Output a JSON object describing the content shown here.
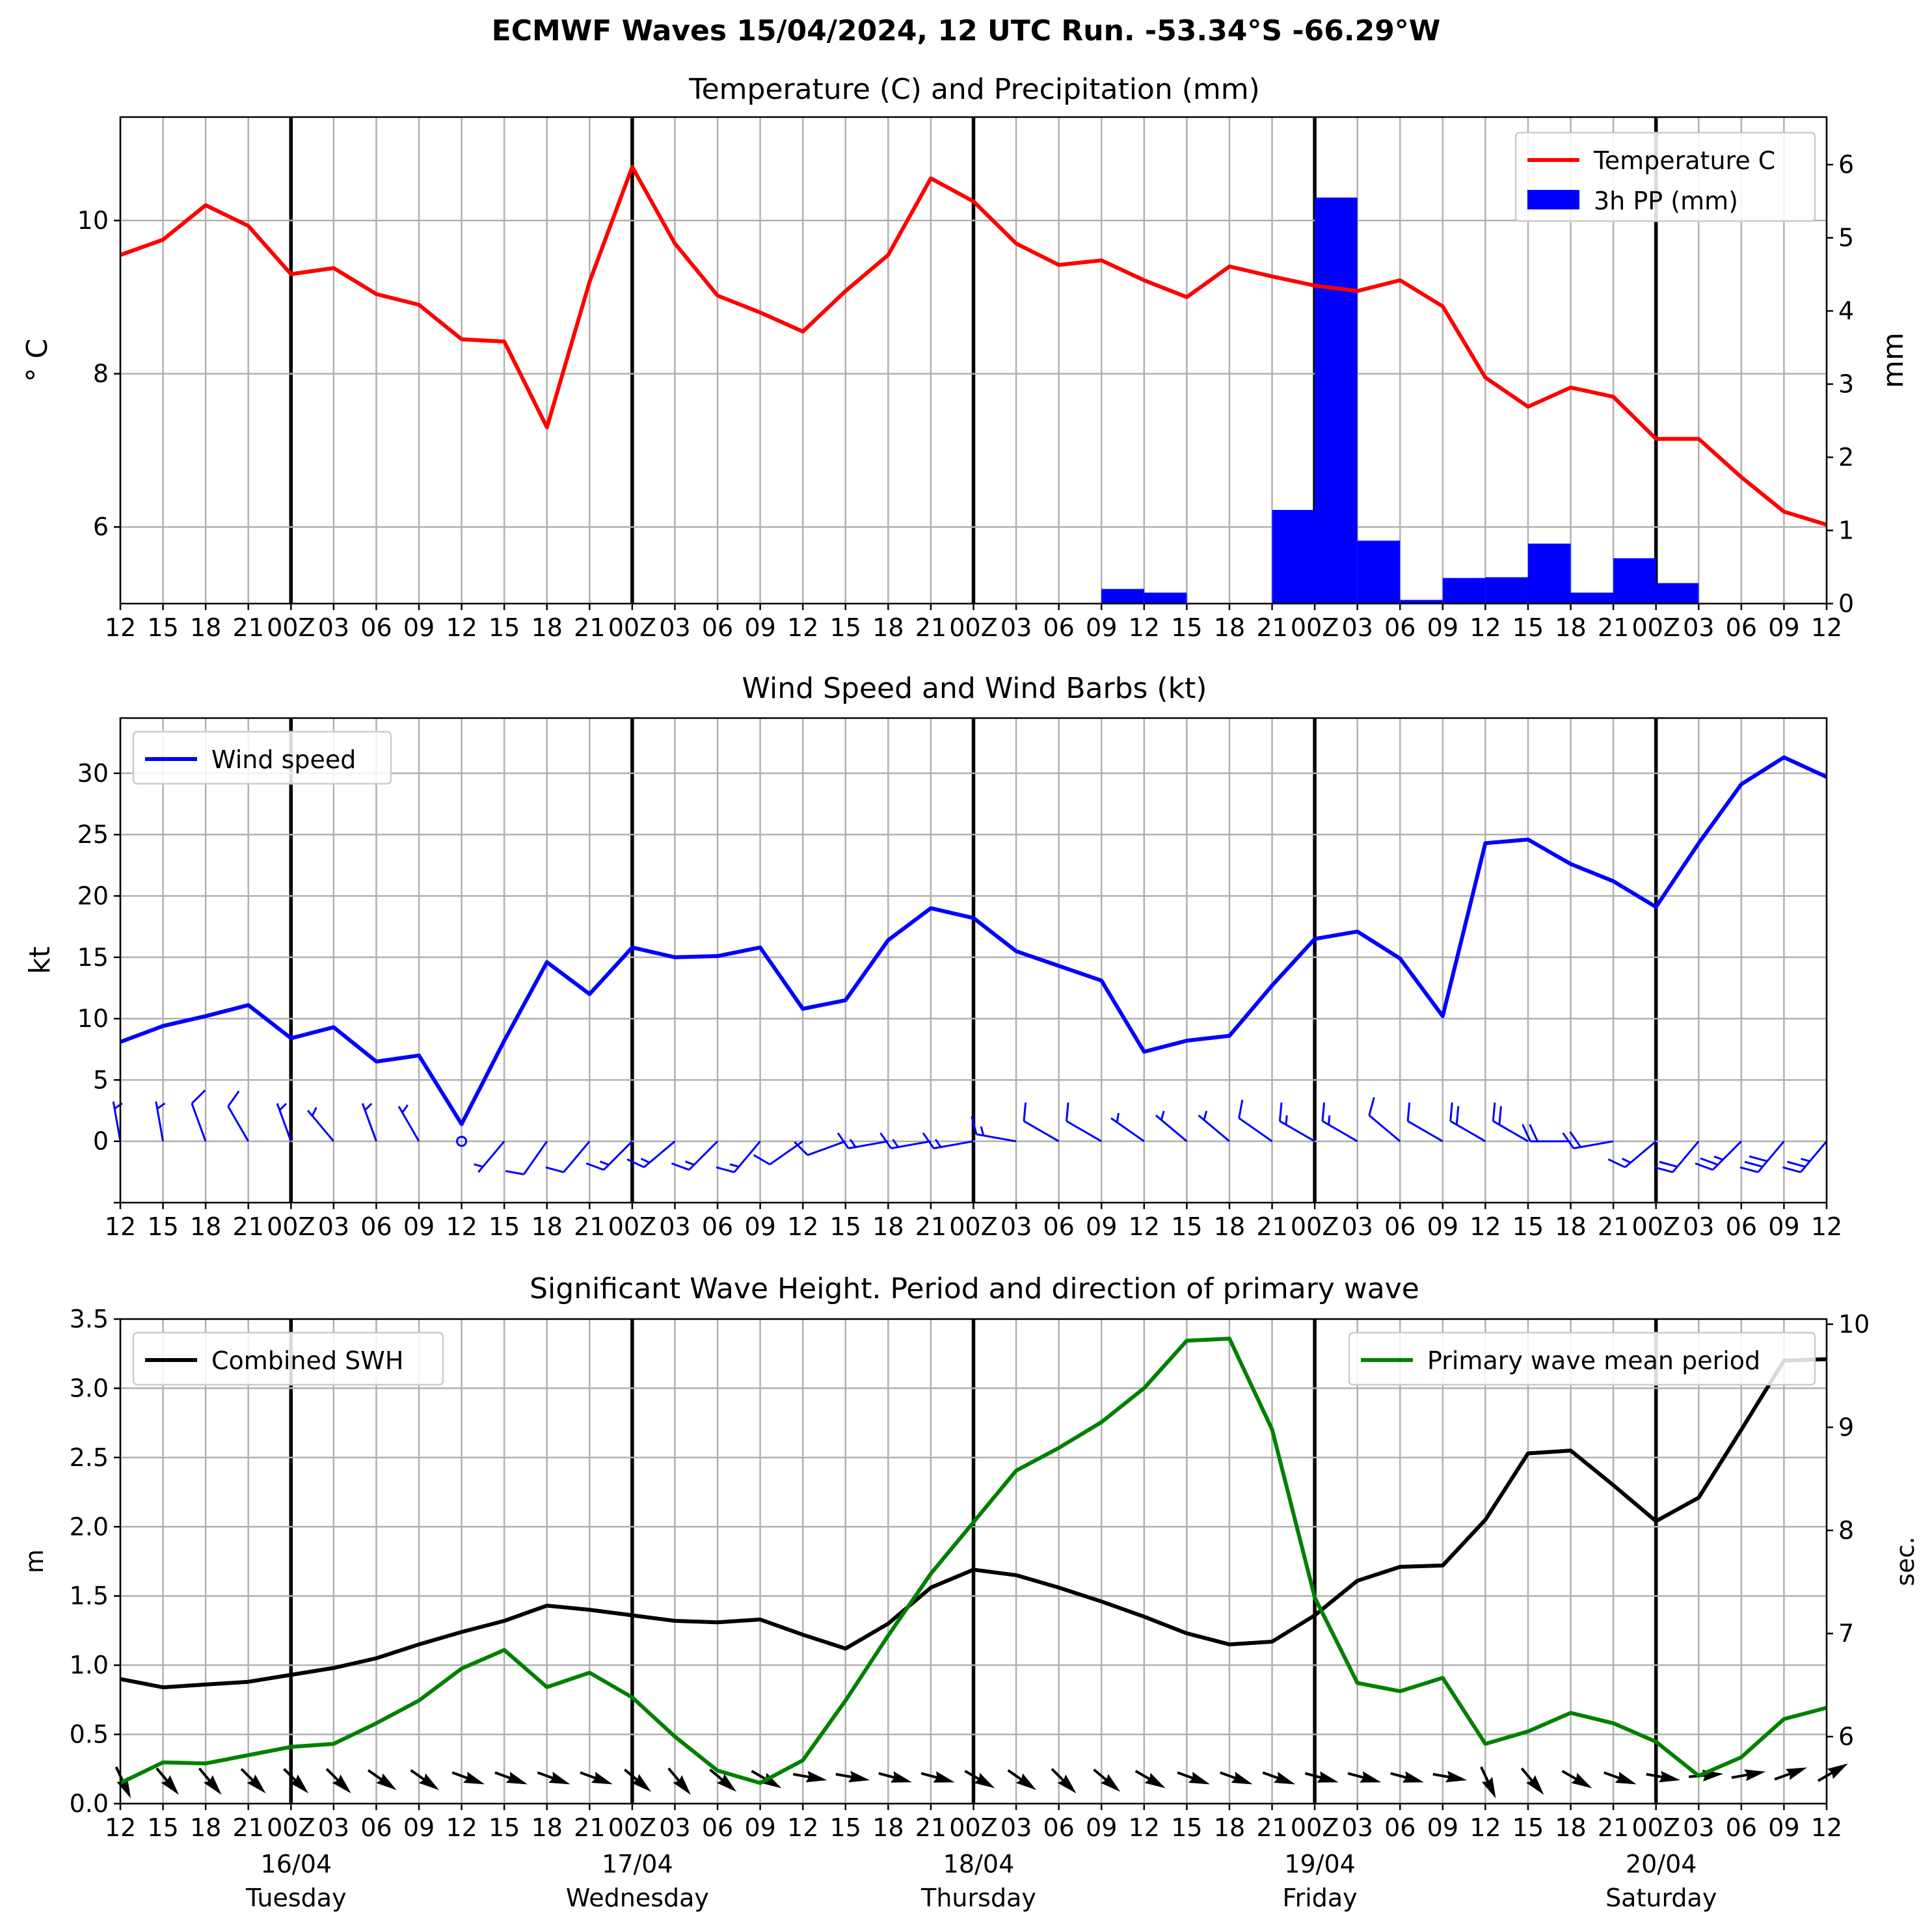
{
  "suptitle": "ECMWF Waves 15/04/2024, 12 UTC Run. -53.34°S -66.29°W",
  "x_tick_labels": [
    "12",
    "15",
    "18",
    "21",
    "00Z",
    "03",
    "06",
    "09",
    "12",
    "15",
    "18",
    "21",
    "00Z",
    "03",
    "06",
    "09",
    "12",
    "15",
    "18",
    "21",
    "00Z",
    "03",
    "06",
    "09",
    "12",
    "15",
    "18",
    "21",
    "00Z",
    "03",
    "06",
    "09",
    "12",
    "15",
    "18",
    "21",
    "00Z",
    "03",
    "06",
    "09",
    "12"
  ],
  "day_labels": [
    {
      "date": "16/04",
      "weekday": "Tuesday"
    },
    {
      "date": "17/04",
      "weekday": "Wednesday"
    },
    {
      "date": "18/04",
      "weekday": "Thursday"
    },
    {
      "date": "19/04",
      "weekday": "Friday"
    },
    {
      "date": "20/04",
      "weekday": "Saturday"
    }
  ],
  "colors": {
    "temperature": "#ff0000",
    "precip": "#0000ff",
    "wind": "#0000ff",
    "swh": "#000000",
    "period": "#008000",
    "wave_arrow": "#000000"
  },
  "chart_data": [
    {
      "type": "line",
      "title": "Temperature (C) and Precipitation (mm)",
      "ylabel": "$^\\circ$C",
      "ylabel_right": "mm",
      "ylim": [
        5.0,
        11.35
      ],
      "ylim_right": [
        0,
        6.65
      ],
      "yticks": [
        6,
        8,
        10
      ],
      "yticks_right": [
        0,
        1,
        2,
        3,
        4,
        5,
        6
      ],
      "legend": "top-right",
      "grid": true,
      "series": [
        {
          "name": "Temperature C",
          "type": "line",
          "values": [
            9.55,
            9.75,
            10.2,
            9.93,
            9.3,
            9.38,
            9.04,
            8.9,
            8.45,
            8.42,
            7.3,
            9.2,
            10.7,
            9.7,
            9.02,
            8.8,
            8.55,
            9.08,
            9.55,
            10.55,
            10.25,
            9.7,
            9.42,
            9.48,
            9.22,
            9.0,
            9.4,
            9.27,
            9.15,
            9.08,
            9.22,
            8.88,
            7.95,
            7.57,
            7.82,
            7.7,
            7.15,
            7.15,
            6.65,
            6.2,
            6.03
          ]
        },
        {
          "name": "3h PP (mm)",
          "type": "bar",
          "values": [
            0,
            0,
            0,
            0,
            0,
            0,
            0,
            0,
            0,
            0,
            0,
            0,
            0,
            0,
            0,
            0.01,
            0,
            0,
            0,
            0,
            0,
            0,
            0,
            0,
            0.2,
            0.15,
            0,
            0,
            1.28,
            5.55,
            0.86,
            0.05,
            0.35,
            0.36,
            0.82,
            0.15,
            0.62,
            0.28,
            0,
            0.01,
            0.01
          ]
        }
      ]
    },
    {
      "type": "line",
      "title": "Wind Speed and Wind Barbs (kt)",
      "ylabel": "kt",
      "ylim": [
        -5,
        34.5
      ],
      "yticks": [
        0,
        5,
        10,
        15,
        20,
        25,
        30
      ],
      "legend": "top-left",
      "grid": true,
      "series": [
        {
          "name": "Wind speed",
          "values": [
            8.1,
            9.4,
            10.2,
            11.1,
            8.4,
            9.3,
            6.5,
            7.0,
            1.4,
            8.2,
            14.6,
            12.0,
            15.8,
            15.0,
            15.1,
            15.8,
            10.8,
            11.5,
            16.4,
            19.0,
            18.2,
            15.5,
            14.3,
            13.1,
            7.3,
            8.2,
            8.6,
            12.7,
            16.5,
            17.1,
            14.9,
            10.2,
            24.3,
            24.6,
            22.6,
            21.2,
            19.1,
            24.3,
            29.1,
            31.3,
            29.7
          ]
        }
      ],
      "barb_directions_deg": [
        350,
        350,
        340,
        330,
        340,
        320,
        340,
        330,
        null,
        220,
        215,
        220,
        225,
        230,
        225,
        220,
        235,
        250,
        260,
        260,
        260,
        280,
        300,
        300,
        305,
        310,
        310,
        305,
        300,
        300,
        310,
        300,
        300,
        300,
        270,
        260,
        230,
        220,
        225,
        220,
        220
      ]
    },
    {
      "type": "line",
      "title": "Significant Wave Height. Period and direction of primary wave",
      "ylabel": "m",
      "ylabel_right": "sec.",
      "ylim": [
        0.0,
        3.5
      ],
      "ylim_right": [
        5.35,
        10.05
      ],
      "yticks": [
        0.0,
        0.5,
        1.0,
        1.5,
        2.0,
        2.5,
        3.0,
        3.5
      ],
      "yticks_right": [
        6,
        7,
        8,
        9,
        10
      ],
      "legend": "top-left and top-right",
      "grid": true,
      "series": [
        {
          "name": "Combined SWH",
          "axis": "left",
          "values": [
            0.9,
            0.84,
            0.86,
            0.88,
            0.93,
            0.98,
            1.05,
            1.15,
            1.24,
            1.32,
            1.43,
            1.4,
            1.36,
            1.32,
            1.31,
            1.33,
            1.22,
            1.12,
            1.3,
            1.56,
            1.69,
            1.65,
            1.56,
            1.46,
            1.35,
            1.23,
            1.15,
            1.17,
            1.36,
            1.61,
            1.71,
            1.72,
            2.05,
            2.53,
            2.55,
            2.3,
            2.04,
            2.21,
            2.7,
            3.2,
            3.21
          ]
        },
        {
          "name": "Primary wave mean period",
          "axis": "right",
          "values": [
            5.55,
            5.75,
            5.74,
            5.82,
            5.9,
            5.93,
            6.13,
            6.35,
            6.66,
            6.84,
            6.48,
            6.62,
            6.38,
            6.0,
            5.67,
            5.55,
            5.77,
            6.35,
            6.98,
            7.58,
            8.08,
            8.58,
            8.8,
            9.05,
            9.38,
            9.84,
            9.86,
            8.98,
            7.35,
            6.52,
            6.44,
            6.57,
            5.93,
            6.05,
            6.23,
            6.13,
            5.95,
            5.62,
            5.8,
            6.17,
            6.28
          ]
        }
      ],
      "wave_direction_deg": [
        335,
        320,
        320,
        315,
        315,
        315,
        305,
        305,
        290,
        290,
        290,
        290,
        310,
        320,
        310,
        300,
        280,
        280,
        285,
        285,
        300,
        305,
        315,
        310,
        300,
        290,
        290,
        290,
        285,
        285,
        285,
        280,
        335,
        320,
        300,
        290,
        280,
        265,
        260,
        250,
        240
      ]
    }
  ]
}
